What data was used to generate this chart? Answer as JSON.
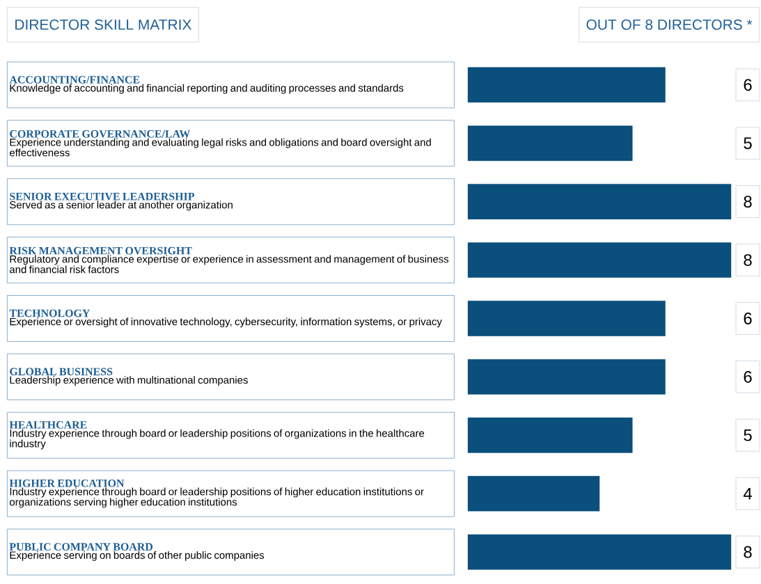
{
  "chart_data": {
    "type": "bar",
    "orientation": "horizontal",
    "title": "DIRECTOR SKILL MATRIX",
    "subtitle": "OUT OF 8 DIRECTORS *",
    "categories": [
      "ACCOUNTING/FINANCE",
      "CORPORATE GOVERNANCE/LAW",
      "SENIOR EXECUTIVE LEADERSHIP",
      "RISK MANAGEMENT OVERSIGHT",
      "TECHNOLOGY",
      "GLOBAL BUSINESS",
      "HEALTHCARE",
      "HIGHER EDUCATION",
      "PUBLIC COMPANY BOARD"
    ],
    "annotations": [
      "Knowledge of accounting and financial reporting and auditing processes and standards",
      "Experience understanding and evaluating legal risks and obligations and board oversight and effectiveness",
      "Served as a senior leader at another organization",
      "Regulatory and compliance expertise or experience in assessment and management of business and financial risk factors",
      "Experience or oversight of innovative technology, cybersecurity, information systems, or privacy",
      "Leadership experience with multinational companies",
      "Industry experience through board or leadership positions of organizations in the healthcare industry",
      "Industry experience through board or leadership positions of higher education institutions or organizations serving higher education institutions",
      "Experience serving on boards of other public companies"
    ],
    "values": [
      6,
      5,
      8,
      8,
      6,
      6,
      5,
      4,
      8
    ],
    "color": "#0b4f7c",
    "data_labels": true
  }
}
